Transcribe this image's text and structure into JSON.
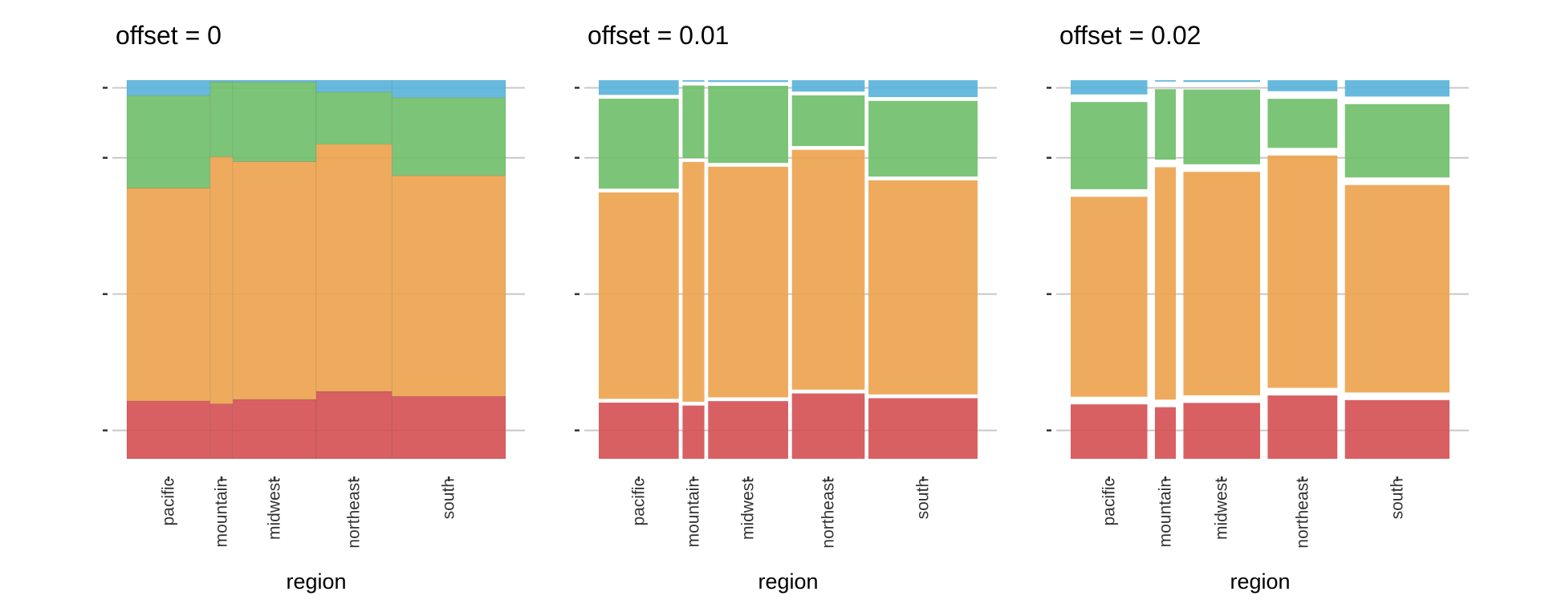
{
  "chart_data": [
    {
      "type": "mosaic",
      "title": "offset = 0",
      "offset": 0,
      "xlabel": "region",
      "ylabel": "",
      "categories": [
        "pacific",
        "mountain",
        "midwest",
        "northeast",
        "south"
      ],
      "widths": [
        0.22,
        0.06,
        0.22,
        0.2,
        0.3
      ],
      "segments": [
        "red",
        "orange",
        "green",
        "blue"
      ],
      "proportions": [
        [
          0.153,
          0.562,
          0.245,
          0.04
        ],
        [
          0.145,
          0.653,
          0.198,
          0.004
        ],
        [
          0.157,
          0.628,
          0.21,
          0.005
        ],
        [
          0.178,
          0.653,
          0.138,
          0.031
        ],
        [
          0.165,
          0.583,
          0.206,
          0.046
        ]
      ]
    },
    {
      "type": "mosaic",
      "title": "offset = 0.01",
      "offset": 0.01,
      "xlabel": "region",
      "ylabel": "",
      "categories": [
        "pacific",
        "mountain",
        "midwest",
        "northeast",
        "south"
      ],
      "widths": [
        0.22,
        0.06,
        0.22,
        0.2,
        0.3
      ],
      "segments": [
        "red",
        "orange",
        "green",
        "blue"
      ],
      "proportions": [
        [
          0.153,
          0.562,
          0.245,
          0.04
        ],
        [
          0.145,
          0.653,
          0.198,
          0.004
        ],
        [
          0.157,
          0.628,
          0.21,
          0.005
        ],
        [
          0.178,
          0.653,
          0.138,
          0.031
        ],
        [
          0.165,
          0.583,
          0.206,
          0.046
        ]
      ]
    },
    {
      "type": "mosaic",
      "title": "offset = 0.02",
      "offset": 0.02,
      "xlabel": "region",
      "ylabel": "",
      "categories": [
        "pacific",
        "mountain",
        "midwest",
        "northeast",
        "south"
      ],
      "widths": [
        0.22,
        0.06,
        0.22,
        0.2,
        0.3
      ],
      "segments": [
        "red",
        "orange",
        "green",
        "blue"
      ],
      "proportions": [
        [
          0.153,
          0.562,
          0.245,
          0.04
        ],
        [
          0.145,
          0.653,
          0.198,
          0.004
        ],
        [
          0.157,
          0.628,
          0.21,
          0.005
        ],
        [
          0.178,
          0.653,
          0.138,
          0.031
        ],
        [
          0.165,
          0.583,
          0.206,
          0.046
        ]
      ]
    }
  ],
  "colors": {
    "red": "#d55256",
    "orange": "#eda450",
    "green": "#71bf6d",
    "blue": "#5ab4da",
    "grid": "#c8c8c8",
    "background": "#ffffff"
  }
}
